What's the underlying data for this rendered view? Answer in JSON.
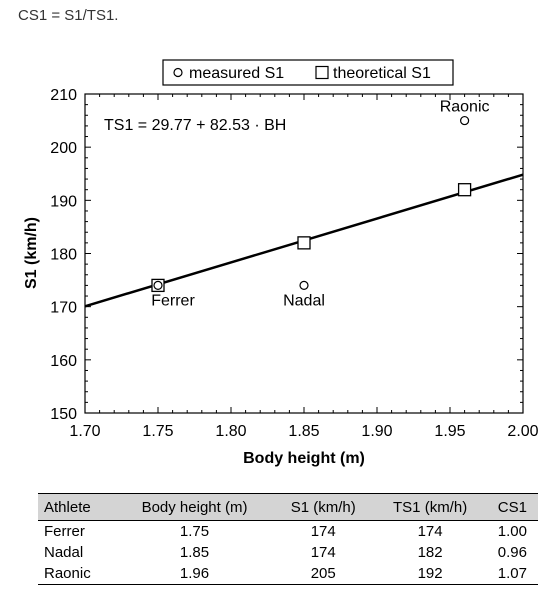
{
  "caption": "CS1 = S1/TS1.",
  "chart_data": {
    "type": "scatter",
    "xlabel": "Body height (m)",
    "ylabel": "S1 (km/h)",
    "xlim": [
      1.7,
      2.0
    ],
    "ylim": [
      150,
      210
    ],
    "xticks": [
      "1.70",
      "1.75",
      "1.80",
      "1.85",
      "1.90",
      "1.95",
      "2.00"
    ],
    "yticks": [
      "150",
      "160",
      "170",
      "180",
      "190",
      "200",
      "210"
    ],
    "legend_position": "top-center",
    "annotation": "TS1 = 29.77 + 82.53 · BH",
    "line": {
      "intercept": 29.77,
      "slope": 82.53
    },
    "series": [
      {
        "name": "measured S1",
        "marker": "circle",
        "x": [
          1.75,
          1.85,
          1.96
        ],
        "y": [
          174,
          174,
          205
        ]
      },
      {
        "name": "theoretical S1",
        "marker": "square",
        "x": [
          1.75,
          1.85,
          1.96
        ],
        "y": [
          174,
          182,
          192
        ]
      }
    ],
    "point_labels": [
      "Ferrer",
      "Nadal",
      "Raonic"
    ]
  },
  "table": {
    "headers": [
      "Athlete",
      "Body height (m)",
      "S1 (km/h)",
      "TS1 (km/h)",
      "CS1"
    ],
    "rows": [
      [
        "Ferrer",
        "1.75",
        "174",
        "174",
        "1.00"
      ],
      [
        "Nadal",
        "1.85",
        "174",
        "182",
        "0.96"
      ],
      [
        "Raonic",
        "1.96",
        "205",
        "192",
        "1.07"
      ]
    ]
  }
}
